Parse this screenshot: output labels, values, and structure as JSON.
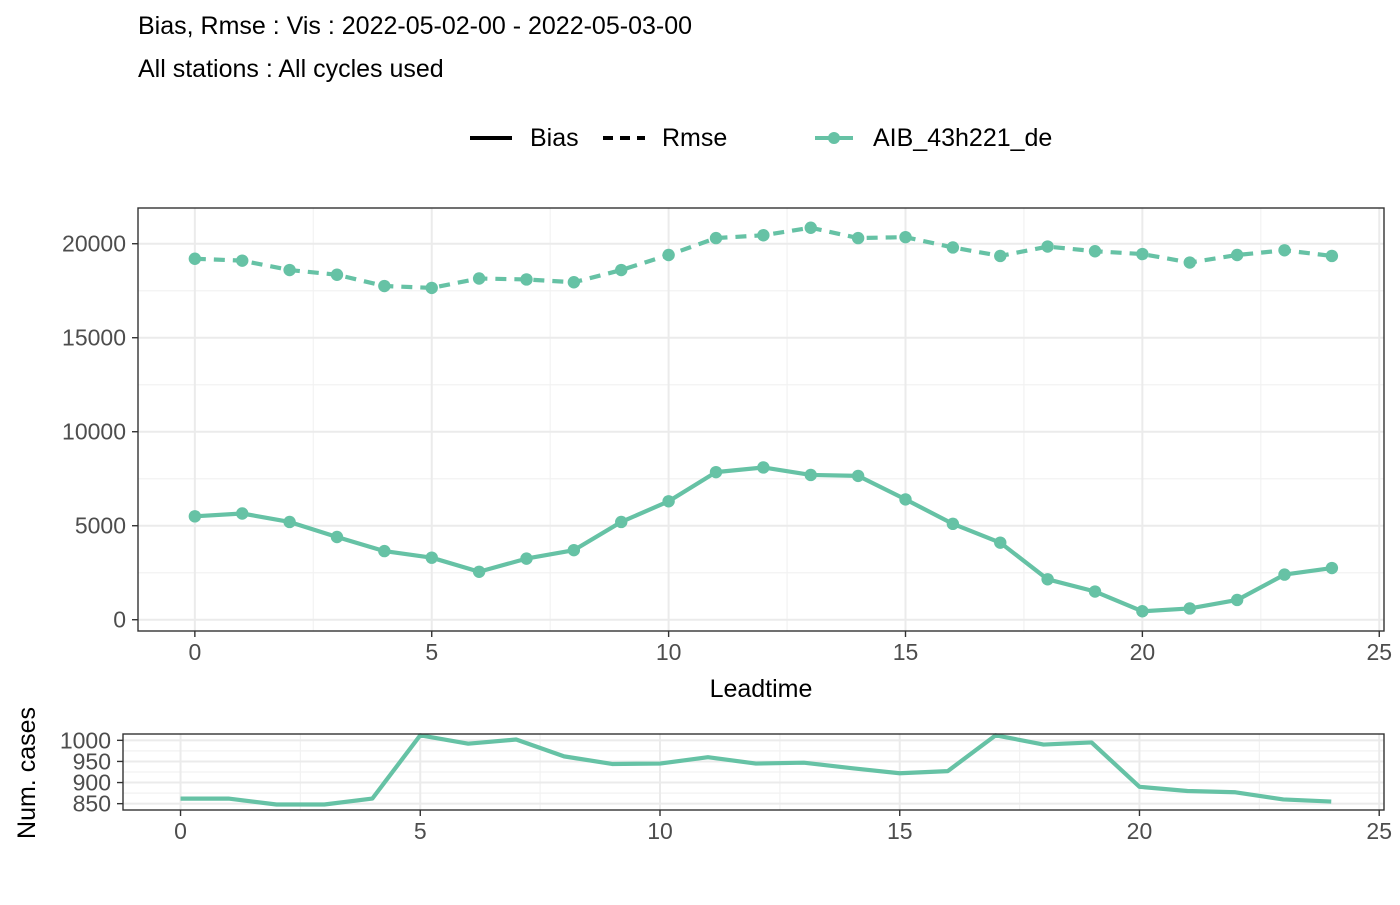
{
  "chart_data": [
    {
      "type": "line",
      "title": "Bias, Rmse : Vis : 2022-05-02-00 - 2022-05-03-00",
      "subtitle": "All stations : All cycles used",
      "xlabel": "Leadtime",
      "ylabel": "",
      "xlim": [
        -1.2,
        25.1
      ],
      "ylim": [
        -600,
        21900
      ],
      "xticks": [
        0,
        5,
        10,
        15,
        20,
        25
      ],
      "yticks": [
        0,
        5000,
        10000,
        15000,
        20000
      ],
      "grid": true,
      "legend_position": "top",
      "legend": {
        "linetypes": [
          "Bias",
          "Rmse"
        ],
        "model": "AIB_43h221_de"
      },
      "color": "#66c2a5",
      "x": [
        0,
        1,
        2,
        3,
        4,
        5,
        6,
        7,
        8,
        9,
        10,
        11,
        12,
        13,
        14,
        15,
        16,
        17,
        18,
        19,
        20,
        21,
        22,
        23,
        24
      ],
      "series": [
        {
          "name": "Bias",
          "linetype": "solid",
          "values": [
            5500,
            5650,
            5200,
            4400,
            3650,
            3300,
            2550,
            3250,
            3700,
            5200,
            6300,
            7850,
            8100,
            7700,
            7650,
            6400,
            5100,
            4100,
            2150,
            1500,
            450,
            600,
            1050,
            2400,
            2750
          ]
        },
        {
          "name": "Rmse",
          "linetype": "dashed",
          "values": [
            19200,
            19100,
            18600,
            18350,
            17750,
            17650,
            18150,
            18100,
            17950,
            18600,
            19400,
            20300,
            20450,
            20850,
            20300,
            20350,
            19800,
            19350,
            19850,
            19600,
            19450,
            19000,
            19400,
            19650,
            19350
          ]
        }
      ]
    },
    {
      "type": "line",
      "title": "",
      "xlabel": "",
      "ylabel": "Num. cases",
      "xlim": [
        -1.2,
        25.1
      ],
      "ylim": [
        835,
        1015
      ],
      "xticks": [
        0,
        5,
        10,
        15,
        20,
        25
      ],
      "yticks": [
        850,
        900,
        950,
        1000
      ],
      "grid": true,
      "color": "#66c2a5",
      "x": [
        0,
        1,
        2,
        3,
        4,
        5,
        6,
        7,
        8,
        9,
        10,
        11,
        12,
        13,
        14,
        15,
        16,
        17,
        18,
        19,
        20,
        21,
        22,
        23,
        24
      ],
      "series": [
        {
          "values": [
            862,
            862,
            848,
            848,
            862,
            1012,
            992,
            1002,
            962,
            944,
            945,
            960,
            945,
            947,
            934,
            922,
            927,
            1012,
            990,
            995,
            890,
            880,
            877,
            860,
            855
          ]
        }
      ]
    }
  ]
}
